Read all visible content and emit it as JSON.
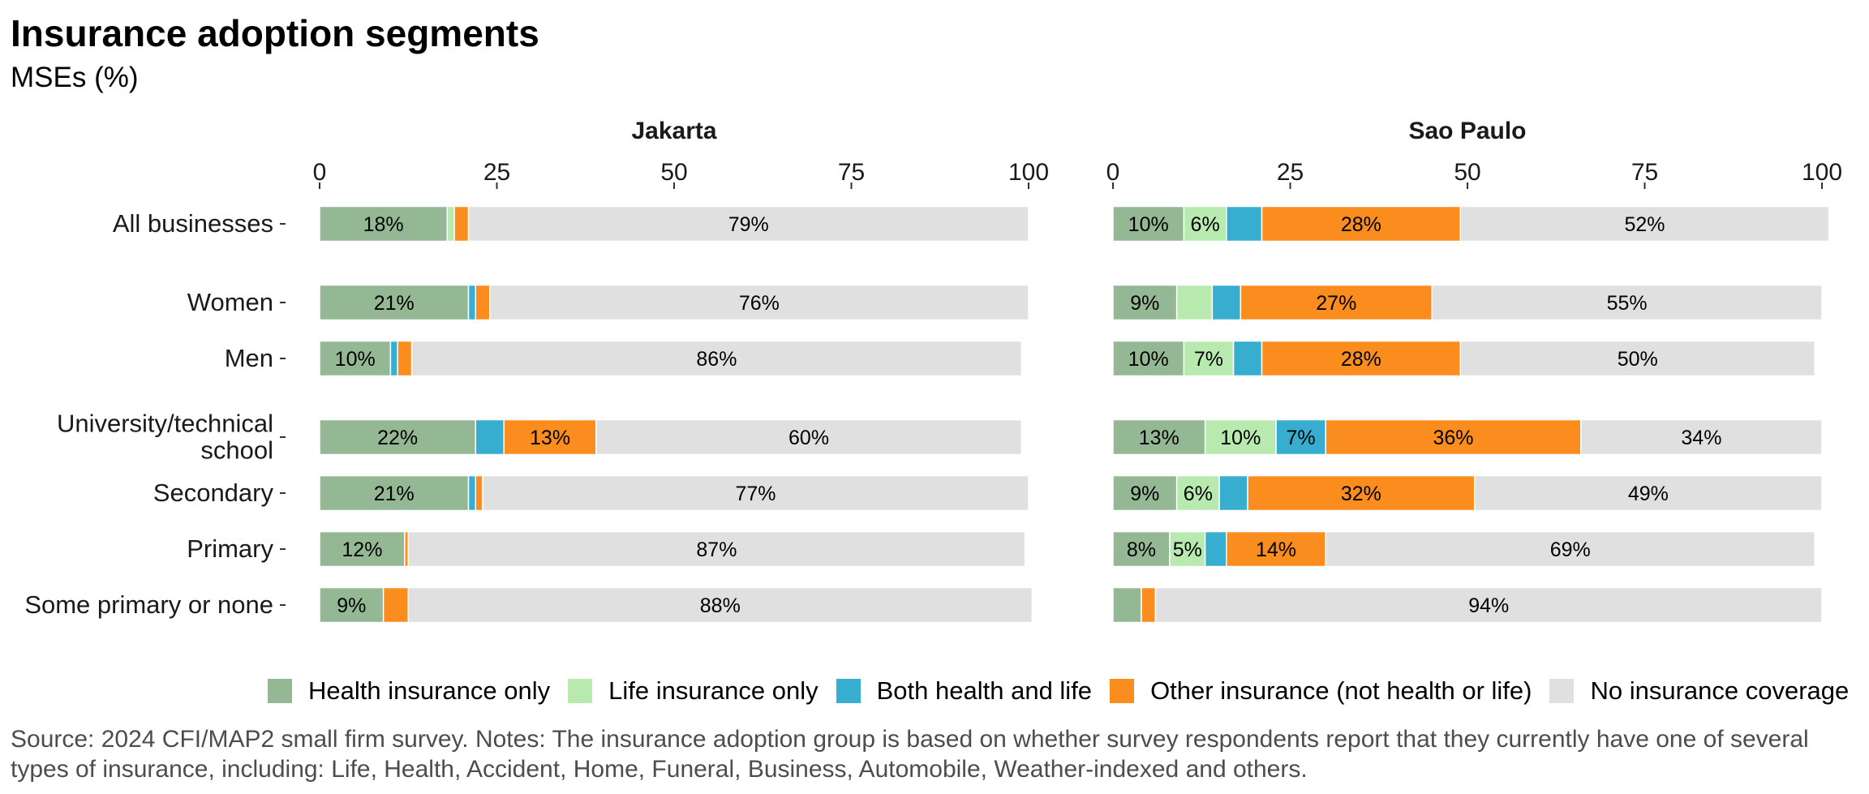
{
  "title": "Insurance adoption segments",
  "subtitle": "MSEs (%)",
  "caption": "Source: 2024 CFI/MAP2 small firm survey. Notes: The insurance adoption group is based on whether survey respondents report that they currently have one of several types of insurance, including: Life, Health, Accident, Home, Funeral, Business, Automobile, Weather-indexed and others.",
  "chart_data": {
    "type": "bar",
    "orientation": "horizontal",
    "stacked": true,
    "xlim": [
      0,
      100
    ],
    "x_ticks": [
      "0",
      "25",
      "50",
      "75",
      "100"
    ],
    "categories": [
      "All businesses",
      "Women",
      "Men",
      "University/technical school",
      "Secondary",
      "Primary",
      "Some primary or none"
    ],
    "category_labels": [
      [
        "All businesses"
      ],
      [
        "Women"
      ],
      [
        "Men"
      ],
      [
        "University/technical",
        "school"
      ],
      [
        "Secondary"
      ],
      [
        "Primary"
      ],
      [
        "Some primary or none"
      ]
    ],
    "series_names": [
      "Health insurance only",
      "Life insurance only",
      "Both health and life",
      "Other insurance (not health or life)",
      "No insurance coverage"
    ],
    "colors": [
      "#93b893",
      "#b8eab0",
      "#37aed0",
      "#fb8c1e",
      "#e0e0e0"
    ],
    "legend_position": "bottom",
    "grid": false,
    "panels": [
      {
        "name": "Jakarta",
        "values": [
          [
            18,
            1,
            0,
            2,
            79
          ],
          [
            21,
            0,
            1,
            2,
            76
          ],
          [
            10,
            0,
            1,
            2,
            86
          ],
          [
            22,
            0,
            4,
            13,
            60
          ],
          [
            21,
            0,
            1,
            1,
            77
          ],
          [
            12,
            0,
            0,
            0.5,
            87
          ],
          [
            9,
            0,
            0,
            3.5,
            88
          ]
        ],
        "labels": [
          [
            "18%",
            "",
            "",
            "",
            "79%"
          ],
          [
            "21%",
            "",
            "",
            "",
            "76%"
          ],
          [
            "10%",
            "",
            "",
            "",
            "86%"
          ],
          [
            "22%",
            "",
            "",
            "13%",
            "60%"
          ],
          [
            "21%",
            "",
            "",
            "",
            "77%"
          ],
          [
            "12%",
            "",
            "",
            "",
            "87%"
          ],
          [
            "9%",
            "",
            "",
            "",
            "88%"
          ]
        ]
      },
      {
        "name": "Sao Paulo",
        "values": [
          [
            10,
            6,
            5,
            28,
            52
          ],
          [
            9,
            5,
            4,
            27,
            55
          ],
          [
            10,
            7,
            4,
            28,
            50
          ],
          [
            13,
            10,
            7,
            36,
            34
          ],
          [
            9,
            6,
            4,
            32,
            49
          ],
          [
            8,
            5,
            3,
            14,
            69
          ],
          [
            4,
            0,
            0,
            2,
            94
          ]
        ],
        "labels": [
          [
            "10%",
            "6%",
            "",
            "28%",
            "52%"
          ],
          [
            "9%",
            "",
            "",
            "27%",
            "55%"
          ],
          [
            "10%",
            "7%",
            "",
            "28%",
            "50%"
          ],
          [
            "13%",
            "10%",
            "7%",
            "36%",
            "34%"
          ],
          [
            "9%",
            "6%",
            "",
            "32%",
            "49%"
          ],
          [
            "8%",
            "5%",
            "",
            "14%",
            "69%"
          ],
          [
            "",
            "",
            "",
            "",
            "94%"
          ]
        ]
      }
    ]
  }
}
